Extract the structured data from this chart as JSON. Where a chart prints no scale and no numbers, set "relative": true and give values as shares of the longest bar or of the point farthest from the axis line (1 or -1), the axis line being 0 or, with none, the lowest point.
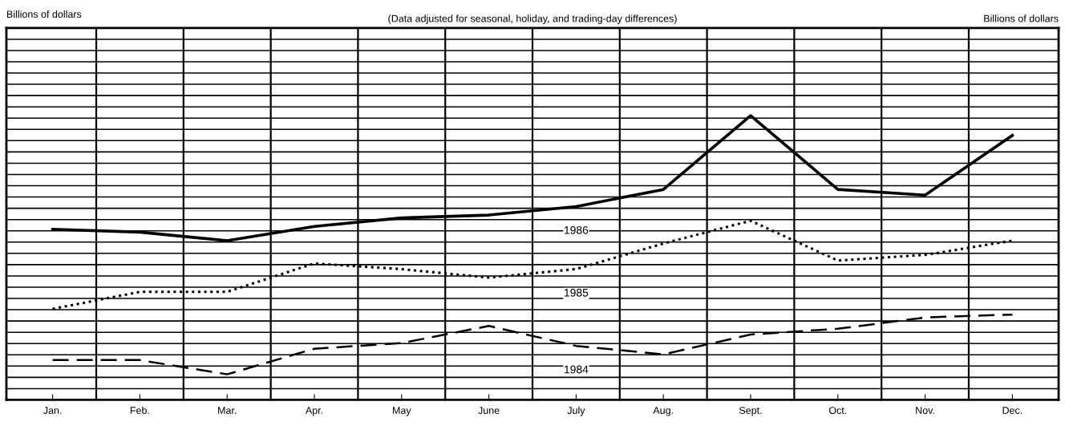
{
  "chart_data": {
    "type": "line",
    "subtitle": "(Data adjusted for seasonal, holiday, and trading-day differences)",
    "annotations": [
      "Billions of dollars",
      "Billions of dollars"
    ],
    "categories": [
      "Jan.",
      "Feb.",
      "Mar.",
      "Apr.",
      "May",
      "June",
      "July",
      "Aug.",
      "Sept.",
      "Oct.",
      "Nov.",
      "Dec."
    ],
    "relative": true,
    "grid": true,
    "legend": false,
    "tick_labels": "x",
    "marker": "none",
    "series": [
      {
        "name": "1986",
        "color": "#000000",
        "line_style": "solid",
        "values": [
          0.6,
          0.59,
          0.56,
          0.61,
          0.64,
          0.65,
          0.68,
          0.74,
          1,
          0.74,
          0.72,
          0.93
        ]
      },
      {
        "name": "1985",
        "color": "#000000",
        "line_style": "dotted",
        "values": [
          0.32,
          0.38,
          0.38,
          0.48,
          0.46,
          0.43,
          0.46,
          0.55,
          0.63,
          0.49,
          0.51,
          0.56
        ]
      },
      {
        "name": "1984",
        "color": "#000000",
        "line_style": "dashed",
        "values": [
          0.14,
          0.14,
          0.09,
          0.18,
          0.2,
          0.26,
          0.19,
          0.16,
          0.23,
          0.25,
          0.29,
          0.3
        ]
      }
    ]
  }
}
